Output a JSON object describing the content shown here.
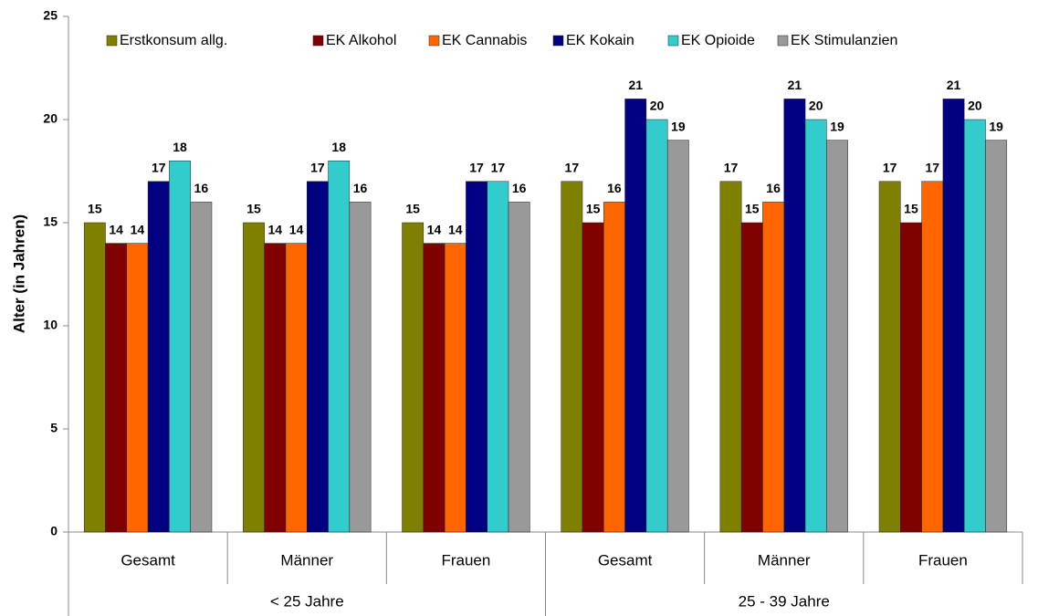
{
  "chart_data": {
    "type": "bar",
    "y_label": "Alter (in Jahren)",
    "categories": [
      "Gesamt",
      "Männer",
      "Frauen",
      "Gesamt",
      "Männer",
      "Frauen"
    ],
    "groups": [
      "< 25 Jahre",
      "25 - 39 Jahre"
    ],
    "series": [
      {
        "name": "Erstkonsum allg.",
        "color": "#808000",
        "values": [
          15,
          15,
          15,
          17,
          17,
          17
        ]
      },
      {
        "name": "EK Alkohol",
        "color": "#800000",
        "values": [
          14,
          14,
          14,
          15,
          15,
          15
        ]
      },
      {
        "name": "EK Cannabis",
        "color": "#ff6600",
        "values": [
          14,
          14,
          14,
          16,
          16,
          17
        ]
      },
      {
        "name": "EK Kokain",
        "color": "#000080",
        "values": [
          17,
          17,
          17,
          21,
          21,
          21
        ]
      },
      {
        "name": "EK Opioide",
        "color": "#33cccc",
        "values": [
          18,
          18,
          17,
          20,
          20,
          20
        ]
      },
      {
        "name": "EK Stimulanzien",
        "color": "#999999",
        "values": [
          16,
          16,
          16,
          19,
          19,
          19
        ]
      }
    ],
    "ylim": [
      0,
      25
    ],
    "yticks": [
      0,
      5,
      10,
      15,
      20,
      25
    ],
    "grid": false,
    "legend": "top"
  }
}
